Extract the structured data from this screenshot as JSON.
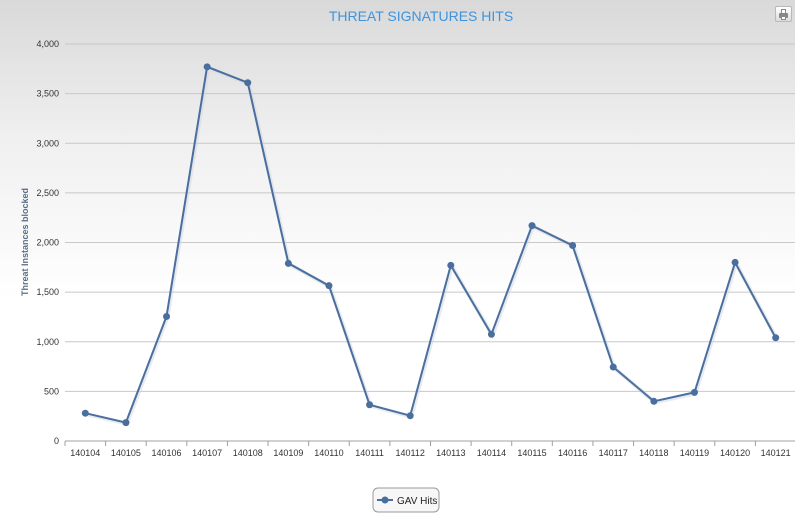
{
  "chart_data": {
    "type": "line",
    "title": "THREAT SIGNATURES HITS",
    "ylabel": "Threat Instances blocked",
    "xlabel": "",
    "categories": [
      "140104",
      "140105",
      "140106",
      "140107",
      "140108",
      "140109",
      "140110",
      "140111",
      "140112",
      "140113",
      "140114",
      "140115",
      "140116",
      "140117",
      "140118",
      "140119",
      "140120",
      "140121"
    ],
    "series": [
      {
        "name": "GAV Hits",
        "color": "#4a6e9d",
        "values": [
          280,
          185,
          1255,
          3770,
          3610,
          1790,
          1565,
          365,
          255,
          1770,
          1075,
          2170,
          1970,
          745,
          400,
          490,
          1800,
          1040
        ]
      }
    ],
    "ylim": [
      0,
      4000
    ],
    "yticks": [
      0,
      500,
      1000,
      1500,
      2000,
      2500,
      3000,
      3500,
      4000
    ],
    "ytick_labels": [
      "0",
      "500",
      "1,000",
      "1,500",
      "2,000",
      "2,500",
      "3,000",
      "3,500",
      "4,000"
    ],
    "grid": true,
    "legend_position": "bottom-center"
  },
  "toolbar": {
    "print_icon": "printer-icon"
  }
}
